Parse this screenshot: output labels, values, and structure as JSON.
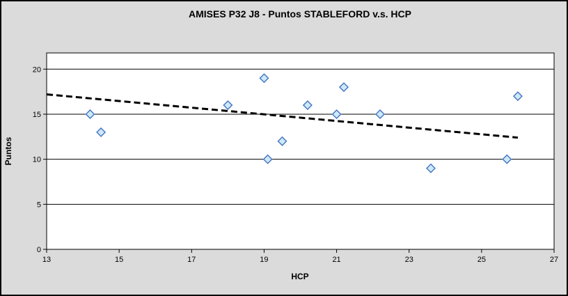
{
  "chart_data": {
    "type": "scatter",
    "title": "AMISES P32 J8 - Puntos STABLEFORD v.s. HCP",
    "xlabel": "HCP",
    "ylabel": "Puntos",
    "xlim": [
      13,
      27
    ],
    "ylim": [
      0,
      21.8
    ],
    "x_ticks": [
      13,
      15,
      17,
      19,
      21,
      23,
      25,
      27
    ],
    "y_ticks": [
      0,
      5,
      10,
      15,
      20
    ],
    "grid": "horizontal-only",
    "legend": "none",
    "points": [
      [
        14.2,
        15
      ],
      [
        14.5,
        13
      ],
      [
        18.0,
        16
      ],
      [
        19.0,
        19
      ],
      [
        19.1,
        10
      ],
      [
        19.5,
        12
      ],
      [
        20.2,
        16
      ],
      [
        21.0,
        15
      ],
      [
        21.2,
        18
      ],
      [
        22.2,
        15
      ],
      [
        23.6,
        9
      ],
      [
        25.7,
        10
      ],
      [
        26.0,
        17
      ]
    ],
    "trendline": {
      "type": "linear",
      "dashed": true,
      "x1": 13,
      "y1": 17.2,
      "x2": 26,
      "y2": 12.4
    },
    "marker": {
      "shape": "diamond",
      "fill": "#CDE9F8",
      "stroke": "#4373C0",
      "size": 12
    },
    "colors": {
      "chart_background": "#DBDBDB",
      "plot_background": "#FFFFFF",
      "axis": "#000000",
      "gridline": "#000000",
      "trendline": "#000000",
      "text": "#000000"
    }
  }
}
